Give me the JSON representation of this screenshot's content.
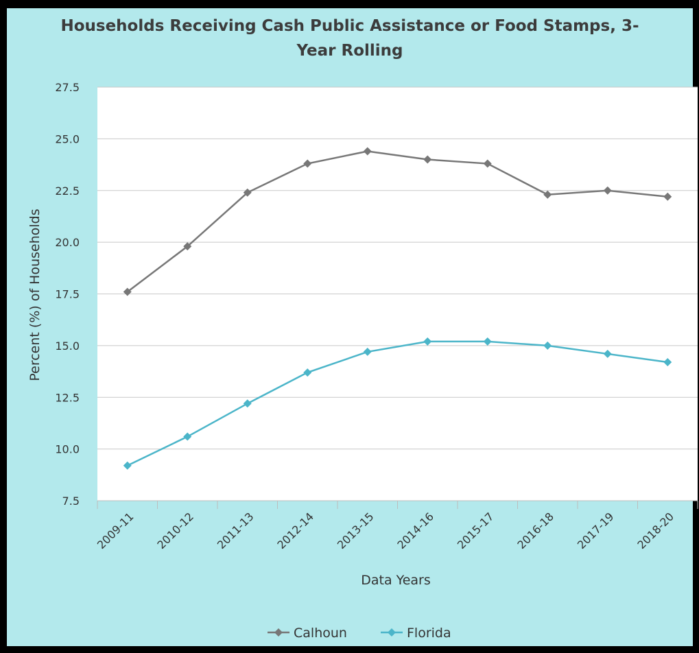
{
  "chart_data": {
    "type": "line",
    "title": "Households Receiving Cash Public Assistance or Food Stamps, 3-\nYear Rolling",
    "xlabel": "Data Years",
    "ylabel": "Percent (%) of Households",
    "categories": [
      "2009-11",
      "2010-12",
      "2011-13",
      "2012-14",
      "2013-15",
      "2014-16",
      "2015-17",
      "2016-18",
      "2017-19",
      "2018-20"
    ],
    "ylim": [
      7.5,
      27.5
    ],
    "yticks": [
      "7.5",
      "10.0",
      "12.5",
      "15.0",
      "17.5",
      "20.0",
      "22.5",
      "25.0",
      "27.5"
    ],
    "grid": true,
    "legend_position": "bottom",
    "series": [
      {
        "name": "Calhoun",
        "color": "#777777",
        "values": [
          17.6,
          19.8,
          22.4,
          23.8,
          24.4,
          24.0,
          23.8,
          22.3,
          22.5,
          22.2
        ]
      },
      {
        "name": "Florida",
        "color": "#4bb5c9",
        "values": [
          9.2,
          10.6,
          12.2,
          13.7,
          14.7,
          15.2,
          15.2,
          15.0,
          14.6,
          14.2
        ]
      }
    ]
  }
}
